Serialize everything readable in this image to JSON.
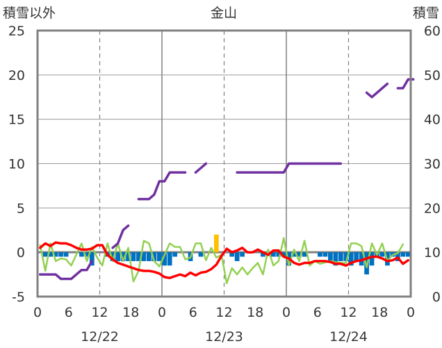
{
  "chart_data": {
    "type": "line",
    "title": "金山",
    "left_axis_label": "積雪以外",
    "right_axis_label": "積雪",
    "left_ylim": [
      -5,
      25
    ],
    "right_ylim": [
      0,
      60
    ],
    "left_ticks": [
      "-5",
      "0",
      "5",
      "10",
      "15",
      "20",
      "25"
    ],
    "right_ticks": [
      "0",
      "10",
      "20",
      "30",
      "40",
      "50",
      "60"
    ],
    "x_hour_ticks": [
      "0",
      "6",
      "12",
      "18",
      "0",
      "6",
      "12",
      "18",
      "0",
      "6",
      "12",
      "18",
      "0"
    ],
    "date_labels": [
      "12/22",
      "12/23",
      "12/24"
    ],
    "x_range_hours": [
      0,
      72
    ],
    "grid": true,
    "colors": {
      "temperature": "#ff0000",
      "wind": "#92d050",
      "snow_depth": "#7030a0",
      "snowfall_bar": "#0070c0",
      "precip_bar": "#ffc000",
      "frame": "#808080"
    },
    "series": [
      {
        "role": "temperature",
        "axis": "left",
        "x": [
          0,
          1,
          2,
          3,
          4,
          5,
          6,
          7,
          8,
          9,
          10,
          11,
          12,
          13,
          14,
          15,
          16,
          17,
          18,
          19,
          20,
          21,
          22,
          23,
          24,
          25,
          26,
          27,
          28,
          29,
          30,
          31,
          32,
          33,
          34,
          35,
          36,
          37,
          38,
          39,
          40,
          41,
          42,
          43,
          44,
          45,
          46,
          47,
          48,
          49,
          50,
          51,
          52,
          53,
          54,
          55,
          56,
          57,
          58,
          59,
          60,
          61,
          62,
          63,
          64,
          65,
          66,
          67,
          68,
          69,
          70,
          71
        ],
        "y": [
          0.5,
          1.0,
          0.7,
          1.1,
          1.0,
          1.0,
          0.8,
          0.5,
          0.3,
          0.3,
          0.4,
          0.8,
          0.8,
          -0.3,
          -0.8,
          -1.2,
          -1.4,
          -1.6,
          -1.8,
          -2.0,
          -2.1,
          -2.1,
          -2.2,
          -2.4,
          -2.8,
          -2.9,
          -2.7,
          -2.5,
          -2.7,
          -2.3,
          -2.6,
          -2.3,
          -2.2,
          -1.9,
          -1.4,
          -0.4,
          0.4,
          0.0,
          0.2,
          0.5,
          0.0,
          0.0,
          0.3,
          0.0,
          -0.3,
          0.2,
          0.2,
          -0.5,
          -0.7,
          -1.2,
          -1.4,
          -1.2,
          -1.2,
          -1.0,
          -1.0,
          -1.0,
          -1.1,
          -1.3,
          -1.3,
          -1.5,
          -1.2,
          -1.0,
          -0.9,
          -0.7,
          -0.5,
          -0.5,
          -0.7,
          -1.0,
          -0.9,
          -0.6,
          -1.3,
          -0.9
        ]
      },
      {
        "role": "wind",
        "axis": "left",
        "x": [
          0,
          1,
          2,
          3,
          4,
          5,
          6,
          8,
          9,
          10,
          11,
          12,
          13,
          14,
          15,
          16,
          17,
          18,
          19,
          20,
          21,
          22,
          23,
          25,
          26,
          27,
          28,
          29,
          30,
          31,
          32,
          33,
          34,
          35,
          36,
          37,
          38,
          39,
          40,
          41,
          42,
          43,
          44,
          45,
          46,
          47,
          48,
          49,
          50,
          51,
          52,
          53,
          54,
          56,
          57,
          58,
          59,
          60,
          61,
          62,
          63,
          64,
          65,
          66,
          67,
          68,
          69,
          70
        ],
        "y": [
          0.8,
          -2.1,
          1.0,
          -1.0,
          -0.7,
          -0.8,
          -1.5,
          1.0,
          -1.0,
          0.6,
          -0.6,
          -1.5,
          1.0,
          -1.0,
          1.0,
          -1.0,
          0.5,
          -3.3,
          -2.1,
          1.3,
          1.0,
          -1.0,
          -1.6,
          1.0,
          0.6,
          0.6,
          -0.8,
          -0.6,
          1.0,
          1.0,
          -0.9,
          0.5,
          -0.6,
          -0.3,
          -3.5,
          -1.8,
          -2.5,
          -1.7,
          -2.5,
          -1.8,
          -1.2,
          -2.5,
          0.3,
          -1.5,
          -1.0,
          1.6,
          -1.5,
          0.3,
          -1.0,
          1.3,
          -1.5,
          -1.0,
          -1.3,
          -1.0,
          -1.1,
          -1.2,
          -1.2,
          1.0,
          1.0,
          0.7,
          -1.7,
          1.0,
          -0.3,
          1.0,
          -1.0,
          -0.3,
          -0.1,
          0.9
        ]
      },
      {
        "role": "snow_depth",
        "axis": "right",
        "segments": [
          {
            "x": [
              0,
              1,
              2,
              3,
              4,
              5,
              6,
              7,
              8,
              9,
              10
            ],
            "y": [
              5,
              5,
              5,
              5,
              4,
              4,
              4,
              5,
              6,
              6,
              8
            ]
          },
          {
            "x": [
              14,
              15,
              16,
              17
            ],
            "y": [
              11,
              12,
              15,
              16
            ]
          },
          {
            "x": [
              19,
              20,
              21,
              22,
              23,
              24,
              25,
              26
            ],
            "y": [
              22,
              22,
              22,
              23,
              26,
              26,
              28,
              28
            ]
          },
          {
            "x": [
              26,
              27,
              28
            ],
            "y": [
              28,
              28,
              28
            ]
          },
          {
            "x": [
              30,
              31,
              32
            ],
            "y": [
              28,
              29,
              30
            ]
          },
          {
            "x": [
              38,
              39,
              40,
              41,
              42,
              43,
              44,
              45,
              46
            ],
            "y": [
              28,
              28,
              28,
              28,
              28,
              28,
              28,
              28,
              28
            ]
          },
          {
            "x": [
              46,
              47,
              48,
              49,
              50,
              51,
              52,
              53,
              54,
              55,
              56,
              57,
              58
            ],
            "y": [
              28,
              28,
              30,
              30,
              30,
              30,
              30,
              30,
              30,
              30,
              30,
              30,
              30
            ]
          },
          {
            "x": [
              63,
              64,
              65,
              66,
              67
            ],
            "y": [
              46,
              45,
              46,
              47,
              48
            ]
          },
          {
            "x": [
              69,
              70,
              71,
              72
            ],
            "y": [
              47,
              47,
              49,
              49
            ]
          }
        ]
      },
      {
        "role": "snowfall_bar",
        "axis": "left",
        "x": [
          0,
          1,
          2,
          3,
          4,
          5,
          6,
          7,
          8,
          9,
          10,
          11,
          12,
          13,
          14,
          15,
          16,
          17,
          18,
          19,
          20,
          21,
          22,
          23,
          24,
          25,
          26,
          27,
          28,
          29,
          30,
          31,
          32,
          33,
          34,
          35,
          36,
          37,
          38,
          39,
          40,
          41,
          42,
          43,
          44,
          45,
          46,
          47,
          48,
          49,
          50,
          51,
          52,
          53,
          54,
          55,
          56,
          57,
          58,
          59,
          60,
          61,
          62,
          63,
          64,
          65,
          66,
          67,
          68,
          69,
          70,
          71
        ],
        "y": [
          0,
          -0.5,
          -0.5,
          -0.5,
          -0.5,
          -0.5,
          0,
          0,
          -0.5,
          -0.5,
          -1.5,
          0,
          0,
          -0.5,
          -1.0,
          -1.0,
          -1.0,
          -1.0,
          -1.0,
          -1.0,
          -1.0,
          -1.0,
          -1.0,
          -1.0,
          -1.5,
          -1.5,
          -0.5,
          0,
          0,
          -1.0,
          0,
          -0.5,
          0,
          0,
          0,
          0,
          0,
          -0.5,
          -1.0,
          -0.5,
          0,
          0,
          0,
          -0.5,
          0,
          -0.5,
          -0.5,
          -0.5,
          -1.5,
          -0.5,
          -0.5,
          -0.5,
          0,
          0,
          -0.5,
          -0.5,
          -1.0,
          -1.5,
          -1.0,
          -1.0,
          -1.5,
          -1.0,
          -1.5,
          -2.5,
          -1.5,
          -0.5,
          -0.5,
          -1.5,
          -0.5,
          -1.0,
          -0.5,
          -0.5
        ]
      },
      {
        "role": "precip_bar",
        "axis": "left",
        "x": [
          34
        ],
        "y": [
          2.0
        ]
      }
    ]
  }
}
